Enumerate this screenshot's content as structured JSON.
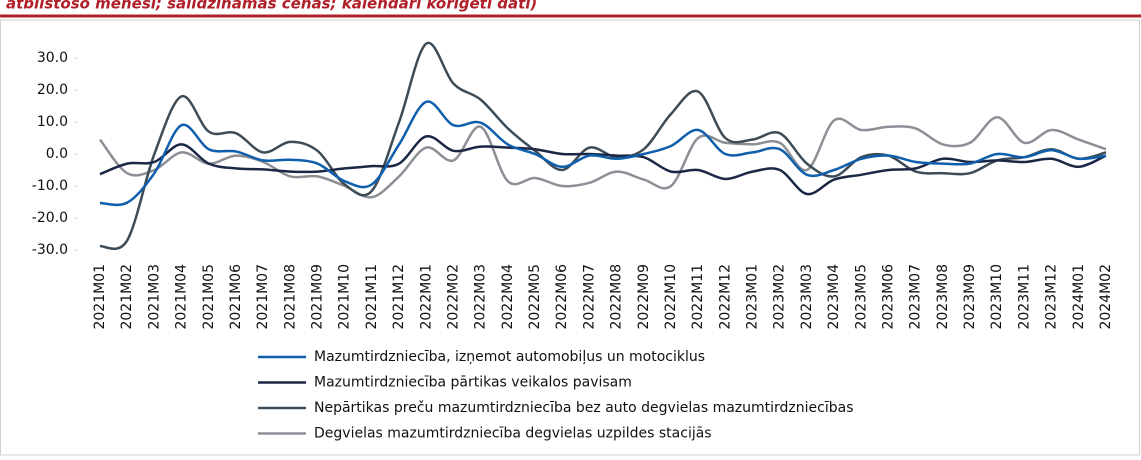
{
  "chart_data": {
    "type": "line",
    "title": "atbilstošo mēnesi; salīdzināmās cenās; kalendāri koriģēti dati)",
    "categories": [
      "2021M01",
      "2021M02",
      "2021M03",
      "2021M04",
      "2021M05",
      "2021M06",
      "2021M07",
      "2021M08",
      "2021M09",
      "2021M10",
      "2021M11",
      "2021M12",
      "2022M01",
      "2022M02",
      "2022M03",
      "2022M04",
      "2022M05",
      "2022M06",
      "2022M07",
      "2022M08",
      "2022M09",
      "2022M10",
      "2022M11",
      "2022M12",
      "2023M01",
      "2023M02",
      "2023M03",
      "2023M04",
      "2023M05",
      "2023M06",
      "2023M07",
      "2023M08",
      "2023M09",
      "2023M10",
      "2023M11",
      "2023M12",
      "2024M01",
      "2024M02"
    ],
    "series": [
      {
        "name": "Mazumtirdzniecība, izņemot automobiļus un motociklus",
        "color": "#0f5fac",
        "values": [
          -15.3,
          -15.2,
          -6,
          9,
          1.5,
          0.8,
          -2,
          -1.8,
          -3,
          -8.5,
          -9.5,
          3,
          16.3,
          9,
          9.8,
          3,
          0,
          -4,
          -0.5,
          -1.5,
          0,
          2.5,
          7.5,
          0,
          0.5,
          1.5,
          -6.5,
          -5,
          -1.5,
          -0.5,
          -2.5,
          -3,
          -3,
          0,
          -1,
          1.2,
          -1.5,
          -0.5
        ]
      },
      {
        "name": "Mazumtirdzniecība pārtikas veikalos pavisam",
        "color": "#1a2846",
        "values": [
          -6.3,
          -3,
          -2.5,
          3,
          -3,
          -4.5,
          -4.8,
          -5.5,
          -5.5,
          -4.5,
          -3.8,
          -3,
          5.5,
          1,
          2.3,
          2,
          1.5,
          0,
          0,
          -0.5,
          -1,
          -5.5,
          -5,
          -7.8,
          -5.5,
          -5,
          -12.5,
          -8,
          -6.5,
          -5,
          -4.5,
          -1.5,
          -2.5,
          -2,
          -2.5,
          -1.5,
          -4,
          -0.5
        ]
      },
      {
        "name": "Nepārtikas preču mazumtirdzniecība bez auto degvielas mazumtirdzniecības",
        "color": "#3d4c57",
        "values": [
          -28.8,
          -27,
          0,
          18,
          7,
          6.5,
          0.5,
          3.8,
          1,
          -9.5,
          -11.5,
          10,
          34.5,
          22,
          17,
          8,
          1,
          -5,
          2,
          -1,
          1.5,
          12.5,
          19.5,
          5,
          4.5,
          6.5,
          -3,
          -7,
          -1,
          -0.5,
          -5.5,
          -6,
          -6,
          -2,
          -1,
          1.5,
          -1.5,
          0.5
        ]
      },
      {
        "name": "Degvielas mazumtirdzniecība degvielas uzpildes stacijās",
        "color": "#8c8f96",
        "values": [
          4.5,
          -6,
          -5,
          0.5,
          -3,
          -0.5,
          -2.5,
          -7,
          -7,
          -10,
          -13.5,
          -7,
          2,
          -2,
          8.5,
          -8.5,
          -7.5,
          -10,
          -9,
          -5.5,
          -8,
          -10,
          5,
          3.5,
          3,
          3.5,
          -5,
          10.5,
          7.5,
          8.5,
          8,
          3,
          3.5,
          11.5,
          3.5,
          7.5,
          4.5,
          1.5
        ]
      }
    ],
    "ylim": [
      -30,
      30
    ],
    "yticks": [
      {
        "value": -30,
        "label": "-30.0"
      },
      {
        "value": -20,
        "label": "-20.0"
      },
      {
        "value": -10,
        "label": "-10.0"
      },
      {
        "value": 0,
        "label": "0.0"
      },
      {
        "value": 10,
        "label": "10.0"
      },
      {
        "value": 20,
        "label": "20.0"
      },
      {
        "value": 30,
        "label": "30.0"
      }
    ]
  }
}
